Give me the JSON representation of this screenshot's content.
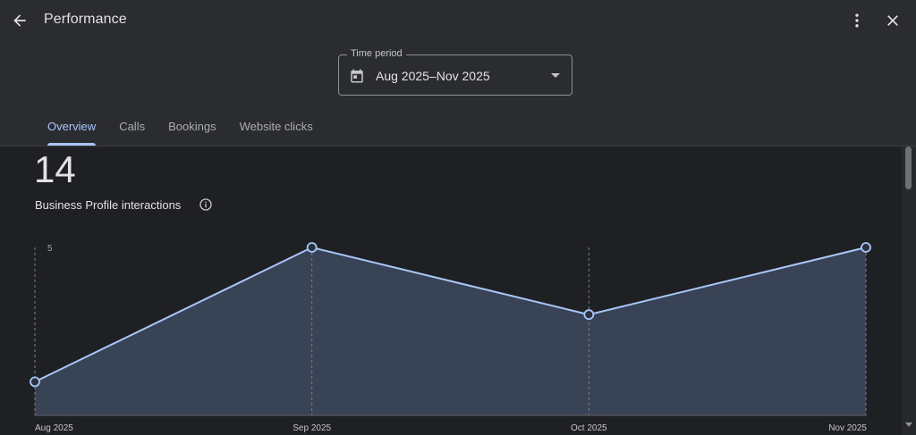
{
  "header": {
    "title": "Performance",
    "back_icon": "arrow-left-icon",
    "menu_icon": "more-vert-icon",
    "close_icon": "close-icon"
  },
  "time_period": {
    "label": "Time period",
    "value": "Aug 2025–Nov 2025",
    "icon": "calendar-icon"
  },
  "tabs": [
    {
      "label": "Overview",
      "active": true
    },
    {
      "label": "Calls",
      "active": false
    },
    {
      "label": "Bookings",
      "active": false
    },
    {
      "label": "Website clicks",
      "active": false
    }
  ],
  "summary": {
    "total": "14",
    "label": "Business Profile interactions"
  },
  "colors": {
    "line": "#a8c7fa",
    "area": "#394356",
    "accent": "#a8c7fa"
  },
  "chart_data": {
    "type": "area",
    "categories": [
      "Aug 2025",
      "Sep 2025",
      "Oct 2025",
      "Nov 2025"
    ],
    "values": [
      1,
      5,
      3,
      5
    ],
    "yticks": [
      "5"
    ],
    "ylim": [
      0,
      5
    ],
    "grid": "vertical-dashed"
  }
}
